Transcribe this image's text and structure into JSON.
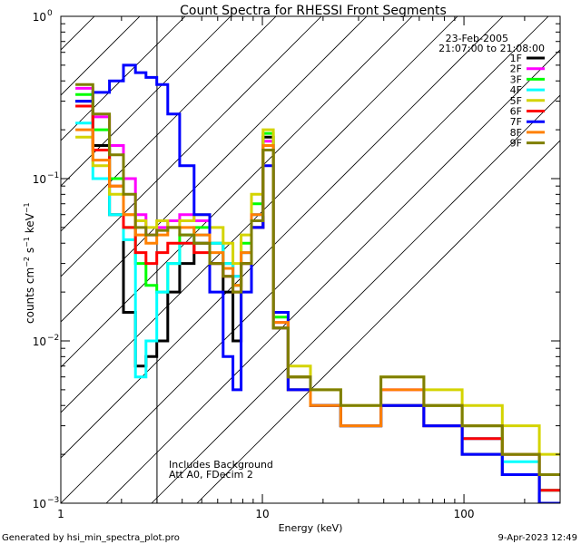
{
  "chart_data": {
    "type": "line",
    "title": "Count Spectra for RHESSI Front Segments",
    "xlabel": "Energy (keV)",
    "ylabel_parts": [
      "counts cm",
      "−2",
      " s",
      "−1",
      " keV",
      "−1"
    ],
    "xscale": "log",
    "yscale": "log",
    "xlim": [
      1,
      300
    ],
    "ylim": [
      0.001,
      1
    ],
    "x_tick_labels": [
      {
        "value": 1,
        "label": "1"
      },
      {
        "value": 10,
        "label": "10"
      },
      {
        "value": 100,
        "label": "100"
      }
    ],
    "y_tick_labels": [
      {
        "value": 1,
        "base": "10",
        "exp": "0"
      },
      {
        "value": 0.1,
        "base": "10",
        "exp": "−1"
      },
      {
        "value": 0.01,
        "base": "10",
        "exp": "−2"
      },
      {
        "value": 0.001,
        "base": "10",
        "exp": "−3"
      }
    ],
    "date": "23-Feb-2005",
    "time_range": "21:07:00 to 21:08:00",
    "annotations": [
      "Includes Background",
      "Att A0, FDecim 2"
    ],
    "hatched_region_below_keV": 3,
    "legend_position": "top-right",
    "grid": false,
    "series": [
      {
        "name": "1F",
        "color": "#000000",
        "points": [
          [
            1.3,
            0.3
          ],
          [
            1.6,
            0.16
          ],
          [
            1.9,
            0.06
          ],
          [
            2.2,
            0.015
          ],
          [
            2.5,
            0.007
          ],
          [
            2.8,
            0.008
          ],
          [
            3.2,
            0.01
          ],
          [
            3.6,
            0.02
          ],
          [
            4.2,
            0.03
          ],
          [
            5.0,
            0.04
          ],
          [
            6.0,
            0.03
          ],
          [
            6.8,
            0.02
          ],
          [
            7.5,
            0.01
          ],
          [
            8.2,
            0.03
          ],
          [
            9.5,
            0.05
          ],
          [
            10.7,
            0.18
          ],
          [
            12.0,
            0.012
          ],
          [
            15.0,
            0.005
          ],
          [
            20.0,
            0.004
          ],
          [
            30.0,
            0.003
          ],
          [
            50.0,
            0.004
          ],
          [
            80.0,
            0.003
          ],
          [
            120.0,
            0.002
          ],
          [
            200.0,
            0.0015
          ],
          [
            280.0,
            0.001
          ]
        ]
      },
      {
        "name": "2F",
        "color": "#ff00ff",
        "points": [
          [
            1.3,
            0.36
          ],
          [
            1.6,
            0.24
          ],
          [
            1.9,
            0.16
          ],
          [
            2.2,
            0.1
          ],
          [
            2.5,
            0.06
          ],
          [
            2.8,
            0.045
          ],
          [
            3.2,
            0.05
          ],
          [
            3.6,
            0.055
          ],
          [
            4.2,
            0.06
          ],
          [
            5.0,
            0.055
          ],
          [
            6.0,
            0.04
          ],
          [
            6.8,
            0.03
          ],
          [
            7.5,
            0.025
          ],
          [
            8.2,
            0.035
          ],
          [
            9.5,
            0.06
          ],
          [
            10.7,
            0.17
          ],
          [
            12.0,
            0.013
          ],
          [
            15.0,
            0.006
          ],
          [
            20.0,
            0.004
          ],
          [
            30.0,
            0.003
          ],
          [
            50.0,
            0.005
          ],
          [
            80.0,
            0.003
          ],
          [
            120.0,
            0.0025
          ],
          [
            200.0,
            0.002
          ],
          [
            280.0,
            0.0015
          ]
        ]
      },
      {
        "name": "3F",
        "color": "#00ff00",
        "points": [
          [
            1.3,
            0.33
          ],
          [
            1.6,
            0.2
          ],
          [
            1.9,
            0.1
          ],
          [
            2.2,
            0.05
          ],
          [
            2.5,
            0.03
          ],
          [
            2.8,
            0.022
          ],
          [
            3.2,
            0.02
          ],
          [
            3.6,
            0.03
          ],
          [
            4.2,
            0.045
          ],
          [
            5.0,
            0.05
          ],
          [
            6.0,
            0.04
          ],
          [
            6.8,
            0.03
          ],
          [
            7.5,
            0.022
          ],
          [
            8.2,
            0.04
          ],
          [
            9.5,
            0.07
          ],
          [
            10.7,
            0.19
          ],
          [
            12.0,
            0.014
          ],
          [
            15.0,
            0.006
          ],
          [
            20.0,
            0.004
          ],
          [
            30.0,
            0.003
          ],
          [
            50.0,
            0.004
          ],
          [
            80.0,
            0.004
          ],
          [
            120.0,
            0.003
          ],
          [
            200.0,
            0.002
          ],
          [
            280.0,
            0.0012
          ]
        ]
      },
      {
        "name": "4F",
        "color": "#00ffff",
        "points": [
          [
            1.3,
            0.22
          ],
          [
            1.6,
            0.1
          ],
          [
            1.9,
            0.06
          ],
          [
            2.2,
            0.042
          ],
          [
            2.5,
            0.006
          ],
          [
            2.8,
            0.01
          ],
          [
            3.2,
            0.02
          ],
          [
            3.6,
            0.03
          ],
          [
            4.2,
            0.04
          ],
          [
            5.0,
            0.045
          ],
          [
            6.0,
            0.04
          ],
          [
            6.8,
            0.03
          ],
          [
            7.5,
            0.025
          ],
          [
            8.2,
            0.035
          ],
          [
            9.5,
            0.06
          ],
          [
            10.7,
            0.16
          ],
          [
            12.0,
            0.012
          ],
          [
            15.0,
            0.005
          ],
          [
            20.0,
            0.004
          ],
          [
            30.0,
            0.003
          ],
          [
            50.0,
            0.004
          ],
          [
            80.0,
            0.003
          ],
          [
            120.0,
            0.0025
          ],
          [
            200.0,
            0.0018
          ],
          [
            280.0,
            0.0012
          ]
        ]
      },
      {
        "name": "5F",
        "color": "#d4d400",
        "points": [
          [
            1.3,
            0.18
          ],
          [
            1.6,
            0.12
          ],
          [
            1.9,
            0.08
          ],
          [
            2.2,
            0.06
          ],
          [
            2.5,
            0.055
          ],
          [
            2.8,
            0.05
          ],
          [
            3.2,
            0.055
          ],
          [
            3.6,
            0.05
          ],
          [
            4.2,
            0.055
          ],
          [
            5.0,
            0.06
          ],
          [
            6.0,
            0.05
          ],
          [
            6.8,
            0.04
          ],
          [
            7.5,
            0.03
          ],
          [
            8.2,
            0.045
          ],
          [
            9.5,
            0.08
          ],
          [
            10.7,
            0.2
          ],
          [
            12.0,
            0.015
          ],
          [
            15.0,
            0.007
          ],
          [
            20.0,
            0.005
          ],
          [
            30.0,
            0.004
          ],
          [
            50.0,
            0.006
          ],
          [
            80.0,
            0.005
          ],
          [
            120.0,
            0.004
          ],
          [
            200.0,
            0.003
          ],
          [
            280.0,
            0.002
          ]
        ]
      },
      {
        "name": "6F",
        "color": "#ff0000",
        "points": [
          [
            1.3,
            0.28
          ],
          [
            1.6,
            0.15
          ],
          [
            1.9,
            0.09
          ],
          [
            2.2,
            0.05
          ],
          [
            2.5,
            0.035
          ],
          [
            2.8,
            0.03
          ],
          [
            3.2,
            0.035
          ],
          [
            3.6,
            0.04
          ],
          [
            4.2,
            0.04
          ],
          [
            5.0,
            0.035
          ],
          [
            6.0,
            0.03
          ],
          [
            6.8,
            0.025
          ],
          [
            7.5,
            0.02
          ],
          [
            8.2,
            0.03
          ],
          [
            9.5,
            0.05
          ],
          [
            10.7,
            0.15
          ],
          [
            12.0,
            0.012
          ],
          [
            15.0,
            0.005
          ],
          [
            20.0,
            0.004
          ],
          [
            30.0,
            0.003
          ],
          [
            50.0,
            0.004
          ],
          [
            80.0,
            0.003
          ],
          [
            120.0,
            0.0025
          ],
          [
            200.0,
            0.002
          ],
          [
            280.0,
            0.0012
          ]
        ]
      },
      {
        "name": "7F",
        "color": "#0000ff",
        "points": [
          [
            1.3,
            0.3
          ],
          [
            1.6,
            0.34
          ],
          [
            1.9,
            0.4
          ],
          [
            2.2,
            0.5
          ],
          [
            2.5,
            0.45
          ],
          [
            2.8,
            0.42
          ],
          [
            3.2,
            0.38
          ],
          [
            3.6,
            0.25
          ],
          [
            4.2,
            0.12
          ],
          [
            5.0,
            0.06
          ],
          [
            6.0,
            0.02
          ],
          [
            6.8,
            0.008
          ],
          [
            7.5,
            0.005
          ],
          [
            8.2,
            0.02
          ],
          [
            9.5,
            0.05
          ],
          [
            10.7,
            0.12
          ],
          [
            12.0,
            0.015
          ],
          [
            15.0,
            0.005
          ],
          [
            20.0,
            0.004
          ],
          [
            30.0,
            0.003
          ],
          [
            50.0,
            0.004
          ],
          [
            80.0,
            0.003
          ],
          [
            120.0,
            0.002
          ],
          [
            200.0,
            0.0015
          ],
          [
            280.0,
            0.001
          ]
        ]
      },
      {
        "name": "8F",
        "color": "#ff8000",
        "points": [
          [
            1.3,
            0.2
          ],
          [
            1.6,
            0.13
          ],
          [
            1.9,
            0.09
          ],
          [
            2.2,
            0.06
          ],
          [
            2.5,
            0.045
          ],
          [
            2.8,
            0.04
          ],
          [
            3.2,
            0.045
          ],
          [
            3.6,
            0.05
          ],
          [
            4.2,
            0.05
          ],
          [
            5.0,
            0.045
          ],
          [
            6.0,
            0.035
          ],
          [
            6.8,
            0.028
          ],
          [
            7.5,
            0.022
          ],
          [
            8.2,
            0.035
          ],
          [
            9.5,
            0.06
          ],
          [
            10.7,
            0.16
          ],
          [
            12.0,
            0.013
          ],
          [
            15.0,
            0.006
          ],
          [
            20.0,
            0.004
          ],
          [
            30.0,
            0.003
          ],
          [
            50.0,
            0.005
          ],
          [
            80.0,
            0.004
          ],
          [
            120.0,
            0.003
          ],
          [
            200.0,
            0.002
          ],
          [
            280.0,
            0.0015
          ]
        ]
      },
      {
        "name": "9F",
        "color": "#7f7f00",
        "points": [
          [
            1.3,
            0.38
          ],
          [
            1.6,
            0.25
          ],
          [
            1.9,
            0.14
          ],
          [
            2.2,
            0.08
          ],
          [
            2.5,
            0.05
          ],
          [
            2.8,
            0.045
          ],
          [
            3.2,
            0.048
          ],
          [
            3.6,
            0.05
          ],
          [
            4.2,
            0.045
          ],
          [
            5.0,
            0.04
          ],
          [
            6.0,
            0.03
          ],
          [
            6.8,
            0.025
          ],
          [
            7.5,
            0.02
          ],
          [
            8.2,
            0.03
          ],
          [
            9.5,
            0.055
          ],
          [
            10.7,
            0.15
          ],
          [
            12.0,
            0.012
          ],
          [
            15.0,
            0.006
          ],
          [
            20.0,
            0.005
          ],
          [
            30.0,
            0.004
          ],
          [
            50.0,
            0.006
          ],
          [
            80.0,
            0.004
          ],
          [
            120.0,
            0.003
          ],
          [
            200.0,
            0.002
          ],
          [
            280.0,
            0.0015
          ]
        ]
      }
    ]
  },
  "footer": {
    "generated_by": "Generated by hsi_min_spectra_plot.pro",
    "timestamp": "9-Apr-2023 12:49"
  }
}
